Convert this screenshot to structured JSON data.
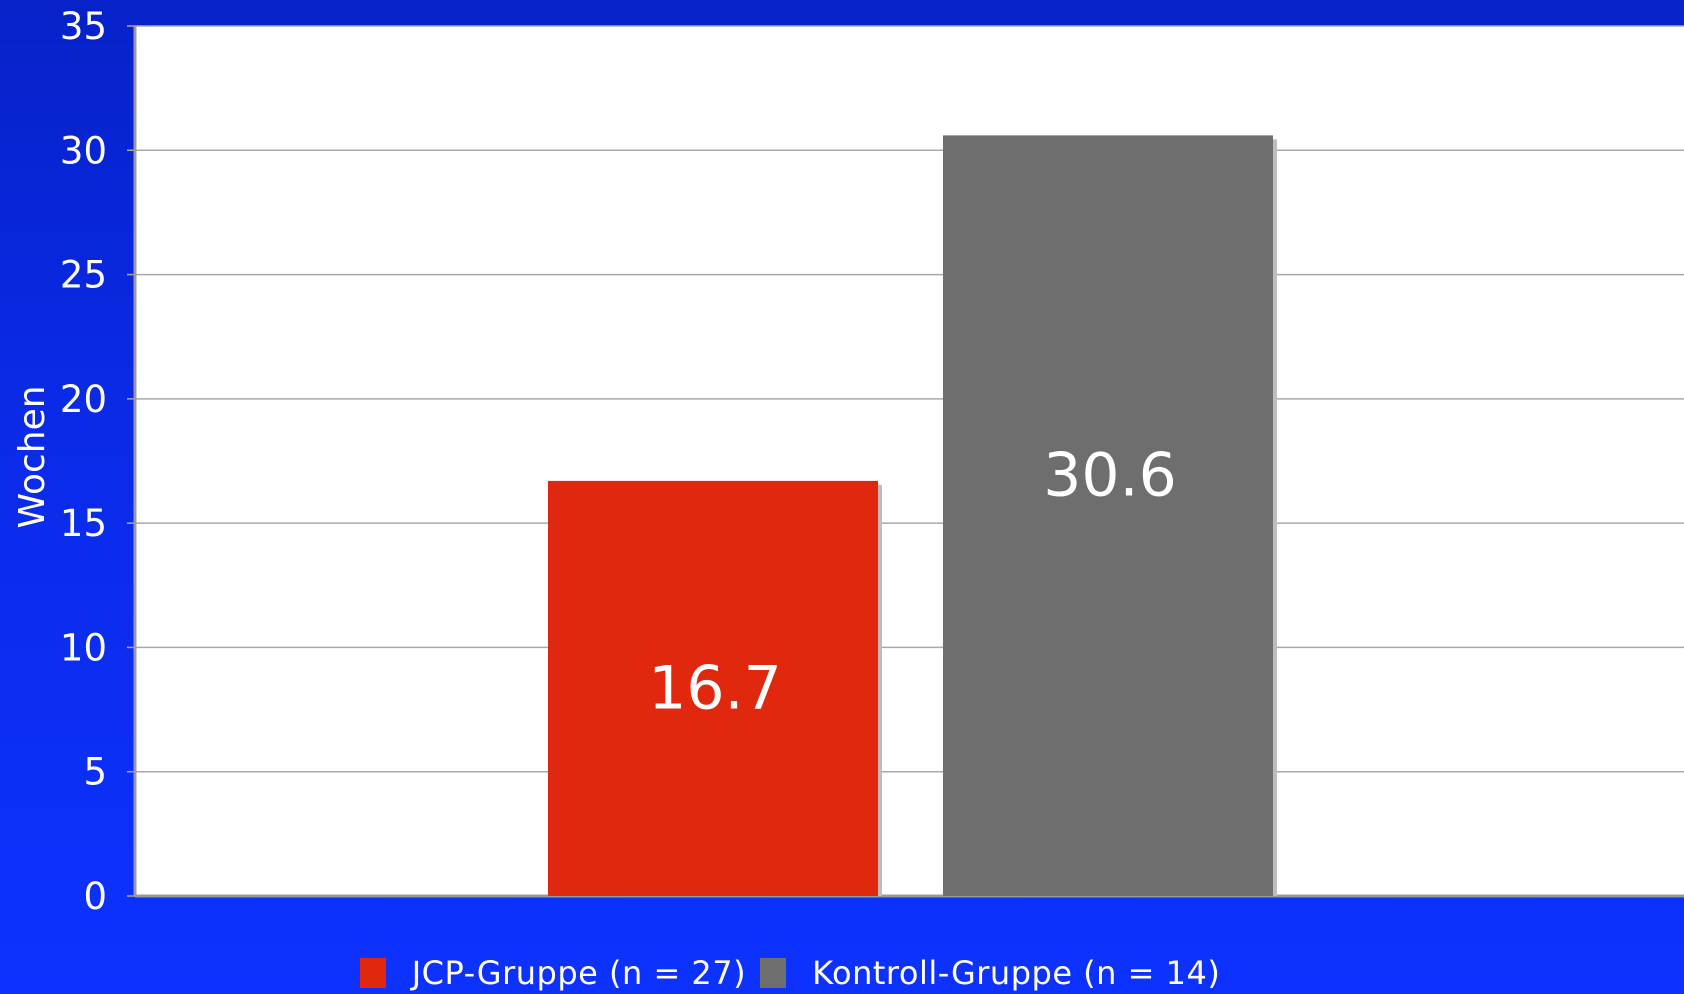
{
  "colors": {
    "plot_background": "#ffffff",
    "gridline": "#a8a8a8",
    "text": "#ffffff",
    "jcp": "#e0280f",
    "kontroll": "#6e6e6e"
  },
  "chart_data": {
    "type": "bar",
    "title": "",
    "xlabel": "",
    "ylabel": "Wochen",
    "ylim": [
      0,
      35
    ],
    "yticks": [
      "0",
      "5",
      "10",
      "15",
      "20",
      "25",
      "30",
      "35"
    ],
    "grid": true,
    "legend_position": "bottom",
    "series": [
      {
        "name": "JCP-Gruppe (n = 27)",
        "value": 16.7,
        "label": "16.7",
        "color": "#e0280f"
      },
      {
        "name": "Kontroll-Gruppe (n = 14)",
        "value": 30.6,
        "label": "30.6",
        "color": "#6e6e6e"
      }
    ]
  }
}
